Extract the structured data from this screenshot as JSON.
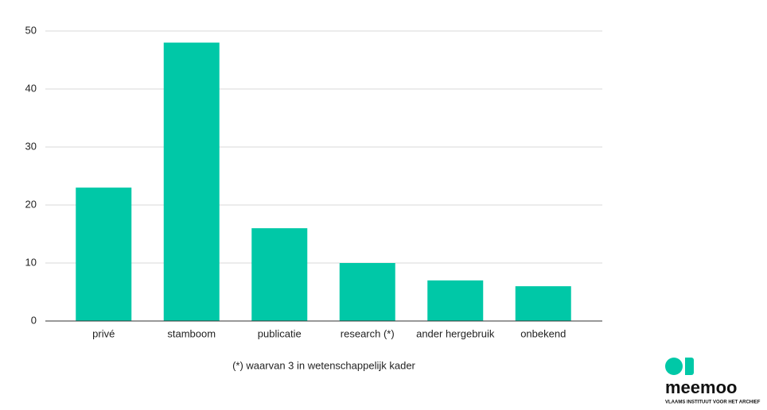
{
  "chart_data": {
    "type": "bar",
    "categories": [
      "privé",
      "stamboom",
      "publicatie",
      "research (*)",
      "ander hergebruik",
      "onbekend"
    ],
    "values": [
      23,
      48,
      16,
      10,
      7,
      6
    ],
    "color": "#00c8a7",
    "ylim": [
      0,
      50
    ],
    "yticks": [
      0,
      10,
      20,
      30,
      40,
      50
    ],
    "grid": true,
    "annotation": "(*) waarvan 3 in wetenschappelijk kader"
  },
  "logo": {
    "name": "meemoo",
    "tagline": "VLAAMS INSTITUUT VOOR HET ARCHIEF"
  }
}
